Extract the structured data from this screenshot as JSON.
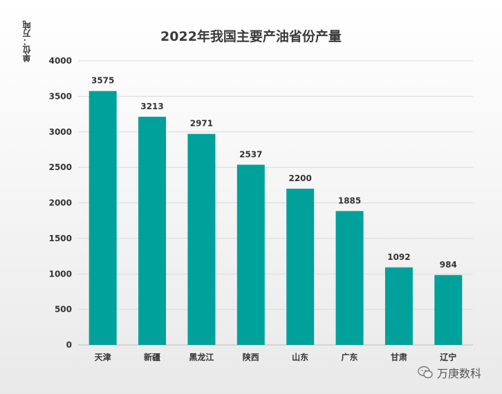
{
  "chart_data": {
    "type": "bar",
    "title": "2022年我国主要产油省份产量",
    "ylabel": "单位：万吨",
    "xlabel": "",
    "categories": [
      "天津",
      "新疆",
      "黑龙江",
      "陕西",
      "山东",
      "广东",
      "甘肃",
      "辽宁"
    ],
    "values": [
      3575,
      3213,
      2971,
      2537,
      2200,
      1885,
      1092,
      984
    ],
    "data_labels": [
      "3575",
      "3213",
      "2971",
      "2537",
      "2200",
      "1885",
      "1092",
      "984"
    ],
    "y_ticks": [
      "0",
      "500",
      "1000",
      "1500",
      "2000",
      "2500",
      "3000",
      "3500",
      "4000"
    ],
    "ylim": [
      0,
      4000
    ],
    "grid": true,
    "legend": "none",
    "bar_color": "#00a19a"
  },
  "watermark": {
    "icon": "wechat-icon",
    "text": "万庚数科"
  }
}
